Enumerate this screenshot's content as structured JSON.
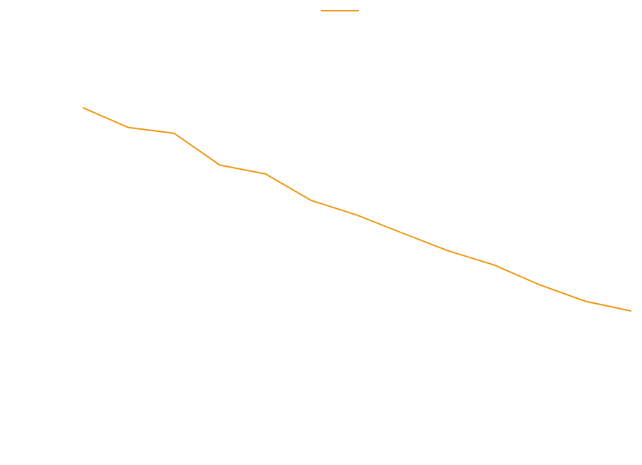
{
  "chart_data": {
    "type": "line",
    "title": "",
    "xlabel": "",
    "ylabel": "",
    "grid": false,
    "legend": "top-center",
    "x": [
      1,
      2,
      3,
      4,
      5,
      6,
      7,
      8,
      9,
      10,
      11,
      12,
      13
    ],
    "xlim": [
      1,
      13
    ],
    "ylim": [
      0,
      100
    ],
    "series": [
      {
        "name": "",
        "color": "#f0960f",
        "values": [
          80.5,
          76.0,
          74.7,
          67.5,
          65.5,
          59.5,
          56.2,
          52.1,
          48.1,
          44.9,
          40.4,
          36.7,
          34.5
        ]
      }
    ]
  }
}
